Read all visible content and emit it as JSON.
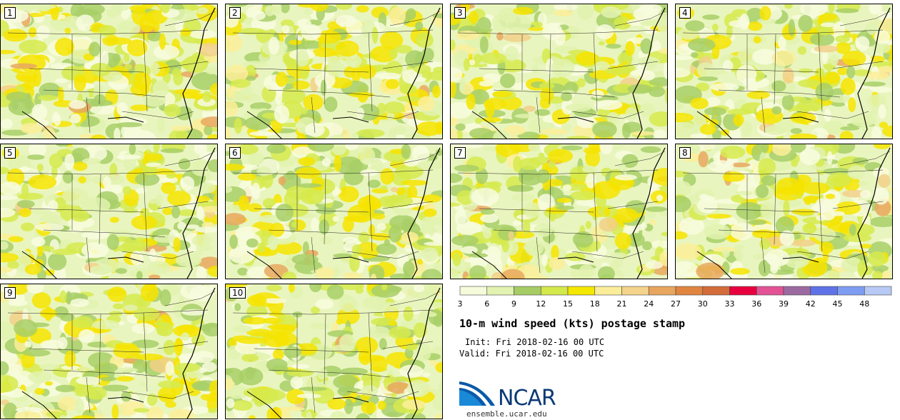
{
  "panels": [
    {
      "label": "1"
    },
    {
      "label": "2"
    },
    {
      "label": "3"
    },
    {
      "label": "4"
    },
    {
      "label": "5"
    },
    {
      "label": "6"
    },
    {
      "label": "7"
    },
    {
      "label": "8"
    },
    {
      "label": "9"
    },
    {
      "label": "10"
    }
  ],
  "colorbar": {
    "colors": [
      "#f5fbdb",
      "#e2f2b0",
      "#a6cc66",
      "#d3e84a",
      "#f4e800",
      "#fbee9a",
      "#f4d48c",
      "#e8a55e",
      "#e08540",
      "#d36c3a",
      "#e8003e",
      "#e35295",
      "#9b6aa0",
      "#5f72e8",
      "#7e9df2",
      "#b7c9f4"
    ],
    "ticks": [
      "3",
      "6",
      "9",
      "12",
      "15",
      "18",
      "21",
      "24",
      "27",
      "30",
      "33",
      "36",
      "39",
      "42",
      "45",
      "48"
    ]
  },
  "title": "10-m wind speed (kts) postage stamp",
  "init": "Init: Fri 2018-02-16 00 UTC",
  "valid": "Valid: Fri 2018-02-16 00 UTC",
  "logo": {
    "text": "NCAR",
    "url": "ensemble.ucar.edu"
  }
}
